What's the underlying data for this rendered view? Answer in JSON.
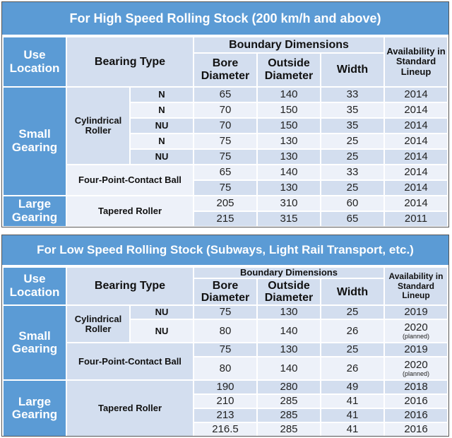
{
  "high": {
    "title": "For High Speed Rolling Stock (200 km/h and above)",
    "headers": {
      "use_location": "Use Location",
      "bearing_type": "Bearing Type",
      "boundary": "Boundary Dimensions",
      "bore": "Bore Diameter",
      "outside": "Outside Diameter",
      "width": "Width",
      "availability": "Availability in Standard Lineup"
    },
    "groups": {
      "small": "Small Gearing",
      "large": "Large Gearing",
      "cyl": "Cylindrical Roller",
      "four": "Four-Point-Contact Ball",
      "tapered": "Tapered Roller"
    },
    "rows": [
      {
        "type": "N",
        "bore": "65",
        "outside": "140",
        "width": "33",
        "year": "2014"
      },
      {
        "type": "N",
        "bore": "70",
        "outside": "150",
        "width": "35",
        "year": "2014"
      },
      {
        "type": "NU",
        "bore": "70",
        "outside": "150",
        "width": "35",
        "year": "2014"
      },
      {
        "type": "N",
        "bore": "75",
        "outside": "130",
        "width": "25",
        "year": "2014"
      },
      {
        "type": "NU",
        "bore": "75",
        "outside": "130",
        "width": "25",
        "year": "2014"
      },
      {
        "bore": "65",
        "outside": "140",
        "width": "33",
        "year": "2014"
      },
      {
        "bore": "75",
        "outside": "130",
        "width": "25",
        "year": "2014"
      },
      {
        "bore": "205",
        "outside": "310",
        "width": "60",
        "year": "2014"
      },
      {
        "bore": "215",
        "outside": "315",
        "width": "65",
        "year": "2011"
      }
    ]
  },
  "low": {
    "title": "For Low Speed Rolling Stock (Subways, Light Rail Transport, etc.)",
    "headers": {
      "use_location": "Use Location",
      "bearing_type": "Bearing Type",
      "boundary": "Boundary Dimensions",
      "bore": "Bore Diameter",
      "outside": "Outside Diameter",
      "width": "Width",
      "availability": "Availability in Standard Lineup"
    },
    "groups": {
      "small": "Small Gearing",
      "large": "Large Gearing",
      "cyl": "Cylindrical Roller",
      "four": "Four-Point-Contact Ball",
      "tapered": "Tapered Roller"
    },
    "rows": [
      {
        "type": "NU",
        "bore": "75",
        "outside": "130",
        "width": "25",
        "year": "2019"
      },
      {
        "type": "NU",
        "bore": "80",
        "outside": "140",
        "width": "26",
        "year": "2020",
        "note": "(planned)"
      },
      {
        "bore": "75",
        "outside": "130",
        "width": "25",
        "year": "2019"
      },
      {
        "bore": "80",
        "outside": "140",
        "width": "26",
        "year": "2020",
        "note": "(planned)"
      },
      {
        "bore": "190",
        "outside": "280",
        "width": "49",
        "year": "2018"
      },
      {
        "bore": "210",
        "outside": "285",
        "width": "41",
        "year": "2016"
      },
      {
        "bore": "213",
        "outside": "285",
        "width": "41",
        "year": "2016"
      },
      {
        "bore": "216.5",
        "outside": "285",
        "width": "41",
        "year": "2016"
      }
    ]
  }
}
